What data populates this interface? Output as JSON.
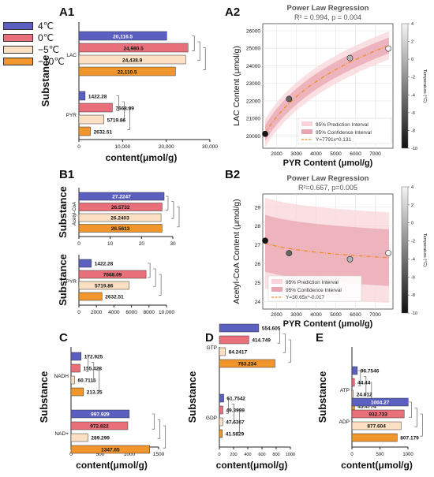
{
  "colors": {
    "c4": "#5b5fbf",
    "c0": "#e9707a",
    "cm5": "#fbe0c3",
    "cm10": "#f0962c",
    "pi": "#f8d4da",
    "ci": "#e8a6b2",
    "fit": "#f08c28"
  },
  "legend": [
    {
      "label": "4℃",
      "color": "#5b5fbf"
    },
    {
      "label": "0℃",
      "color": "#e9707a"
    },
    {
      "label": "−5℃",
      "color": "#fbe0c3"
    },
    {
      "label": "−10℃",
      "color": "#f0962c"
    }
  ],
  "panel_labels": {
    "A1": "A1",
    "A2": "A2",
    "B1": "B1",
    "B2": "B2",
    "C": "C",
    "D": "D",
    "E": "E"
  },
  "chart_data": [
    {
      "id": "A1",
      "type": "bar",
      "orientation": "horizontal",
      "ylabel": "Substance",
      "xlabel": "content(μmol/g)",
      "xlim": [
        0,
        30000
      ],
      "xticks": [
        0,
        10000,
        20000,
        30000
      ],
      "tick_labels": [
        "0",
        "10,000",
        "20,000",
        "30,000"
      ],
      "groups": [
        {
          "name": "LAC",
          "values": [
            20116.5,
            24980.5,
            24438.9,
            22110.5
          ],
          "labels": [
            "20,116.5",
            "24,980.5",
            "24,438.9",
            "22,110.5"
          ]
        },
        {
          "name": "PYR",
          "values": [
            1422.28,
            7668.09,
            5719.86,
            2632.51
          ],
          "labels": [
            "1422.28",
            "7668.09",
            "5719.86",
            "2632.51"
          ]
        }
      ]
    },
    {
      "id": "B1a",
      "type": "bar",
      "orientation": "horizontal",
      "ylabel": "Substance",
      "xlabel": "",
      "xlim": [
        0,
        30
      ],
      "xticks": [
        0,
        10,
        20,
        30
      ],
      "tick_labels": [
        "0",
        "10",
        "20",
        "30"
      ],
      "groups": [
        {
          "name": "Acetyl-CoA",
          "values": [
            27.2247,
            26.5732,
            26.2403,
            26.5613
          ],
          "labels": [
            "27.2247",
            "26.5732",
            "26.2403",
            "26.5613"
          ]
        }
      ]
    },
    {
      "id": "B1b",
      "type": "bar",
      "orientation": "horizontal",
      "ylabel": "Substance",
      "xlabel": "",
      "xlim": [
        0,
        10000
      ],
      "xticks": [
        0,
        2000,
        4000,
        6000,
        8000,
        10000
      ],
      "tick_labels": [
        "0",
        "2000",
        "4000",
        "6000",
        "8000",
        "10,000"
      ],
      "groups": [
        {
          "name": "PYR",
          "values": [
            1422.28,
            7668.09,
            5719.86,
            2632.51
          ],
          "labels": [
            "1422.28",
            "7668.09",
            "5719.86",
            "2632.51"
          ]
        }
      ]
    },
    {
      "id": "C",
      "type": "bar",
      "orientation": "horizontal",
      "ylabel": "Substance",
      "xlabel": "content(μmol/g)",
      "xlim": [
        0,
        1500
      ],
      "xticks": [
        0,
        500,
        1000,
        1500
      ],
      "tick_labels": [
        "0",
        "500",
        "1000",
        "1500"
      ],
      "groups": [
        {
          "name": "NADH",
          "values": [
            172.925,
            155.428,
            60.7115,
            213.35
          ],
          "labels": [
            "172.925",
            "155.428",
            "60.7115",
            "213.35"
          ]
        },
        {
          "name": "NAD+",
          "values": [
            997.929,
            972.822,
            289.299,
            1347.65
          ],
          "labels": [
            "997.929",
            "972.822",
            "289.299",
            "1347.65"
          ]
        }
      ]
    },
    {
      "id": "D",
      "type": "bar",
      "orientation": "horizontal",
      "ylabel": "Substance",
      "xlabel": "content(μmol/g)",
      "xlim": [
        0,
        1000
      ],
      "xticks": [
        0,
        200,
        400,
        600,
        800,
        1000
      ],
      "tick_labels": [
        "0",
        "200",
        "400",
        "600",
        "800",
        "1000"
      ],
      "groups": [
        {
          "name": "GTP",
          "values": [
            554.605,
            414.749,
            84.2417,
            783.234
          ],
          "labels": [
            "554.605",
            "414.749",
            "84.2417",
            "783.234"
          ]
        },
        {
          "name": "GDP",
          "values": [
            61.7542,
            49.3999,
            47.6367,
            41.5829
          ],
          "labels": [
            "61.7542",
            "49.3999",
            "47.6367",
            "41.5829"
          ]
        }
      ]
    },
    {
      "id": "E",
      "type": "bar",
      "orientation": "horizontal",
      "ylabel": "Substance",
      "xlabel": "content(μmol/g)",
      "xlim": [
        0,
        1000
      ],
      "xticks": [
        0,
        500,
        1000
      ],
      "tick_labels": [
        "0",
        "500",
        "1000"
      ],
      "groups": [
        {
          "name": "ATP",
          "values": [
            96.7546,
            44.44,
            24.612,
            45.4774
          ],
          "labels": [
            "96.7546",
            "44.44",
            "24.612",
            "45.4774"
          ]
        },
        {
          "name": "ADP",
          "values": [
            1004.27,
            932.733,
            877.604,
            807.179
          ],
          "labels": [
            "1004.27",
            "932.733",
            "877.604",
            "807.179"
          ]
        }
      ]
    },
    {
      "id": "A2",
      "type": "scatter",
      "title": "Power Law Regression",
      "subtitle": "R² = 0.994, p = 0.004",
      "xlabel": "PYR Content (μmol/g)",
      "ylabel": "LAC Content (μmol/g)",
      "xlim": [
        1300,
        7900
      ],
      "ylim": [
        19300,
        26400
      ],
      "xticks": [
        2000,
        3000,
        4000,
        5000,
        6000,
        7000
      ],
      "yticks": [
        20000,
        21000,
        22000,
        23000,
        24000,
        25000,
        26000
      ],
      "points": [
        {
          "x": 1422.28,
          "y": 20116.5,
          "t": -10
        },
        {
          "x": 2632.51,
          "y": 22110.5,
          "t": -5
        },
        {
          "x": 5719.86,
          "y": 24438.9,
          "t": 0
        },
        {
          "x": 7668.09,
          "y": 24980.5,
          "t": 4
        }
      ],
      "fit": {
        "a": 7791,
        "b": 0.131
      },
      "pi_halfwidth": 800,
      "ci_halfwidth": 450,
      "legend": [
        "95% Prediction Interval",
        "95% Confidence Interval",
        "Y=7791x^0.131"
      ],
      "colorbar": {
        "label": "Temperature (°C)",
        "min": -10,
        "max": 4,
        "ticks": [
          4,
          2,
          0,
          -2,
          -4,
          -6,
          -8,
          -10
        ]
      }
    },
    {
      "id": "B2",
      "type": "scatter",
      "title": "Power Law Regression",
      "subtitle": "R²=0.667, p=0.005",
      "xlabel": "PYR Content (μmol/g)",
      "ylabel": "Acetyl-CoA Content (μmol/g)",
      "xlim": [
        1300,
        7900
      ],
      "ylim": [
        23.6,
        29.7
      ],
      "xticks": [
        2000,
        3000,
        4000,
        5000,
        6000,
        7000
      ],
      "yticks": [
        24,
        25,
        26,
        27,
        28,
        29
      ],
      "points": [
        {
          "x": 1422.28,
          "y": 27.2247,
          "t": -10
        },
        {
          "x": 2632.51,
          "y": 26.5613,
          "t": -5
        },
        {
          "x": 5719.86,
          "y": 26.2403,
          "t": 0
        },
        {
          "x": 7668.09,
          "y": 26.5732,
          "t": 4
        }
      ],
      "fit": {
        "a": 30.65,
        "b": -0.017
      },
      "pi_halfwidth": 2.4,
      "ci_halfwidth": 1.5,
      "legend": [
        "95% Prediction Interval",
        "95% Confidence Interval",
        "Y=30.65x^-0.017"
      ],
      "colorbar": {
        "label": "Temperature (°C)",
        "min": -10,
        "max": 4,
        "ticks": [
          4,
          2,
          0,
          -2,
          -4,
          -6,
          -8,
          -10
        ]
      }
    }
  ]
}
